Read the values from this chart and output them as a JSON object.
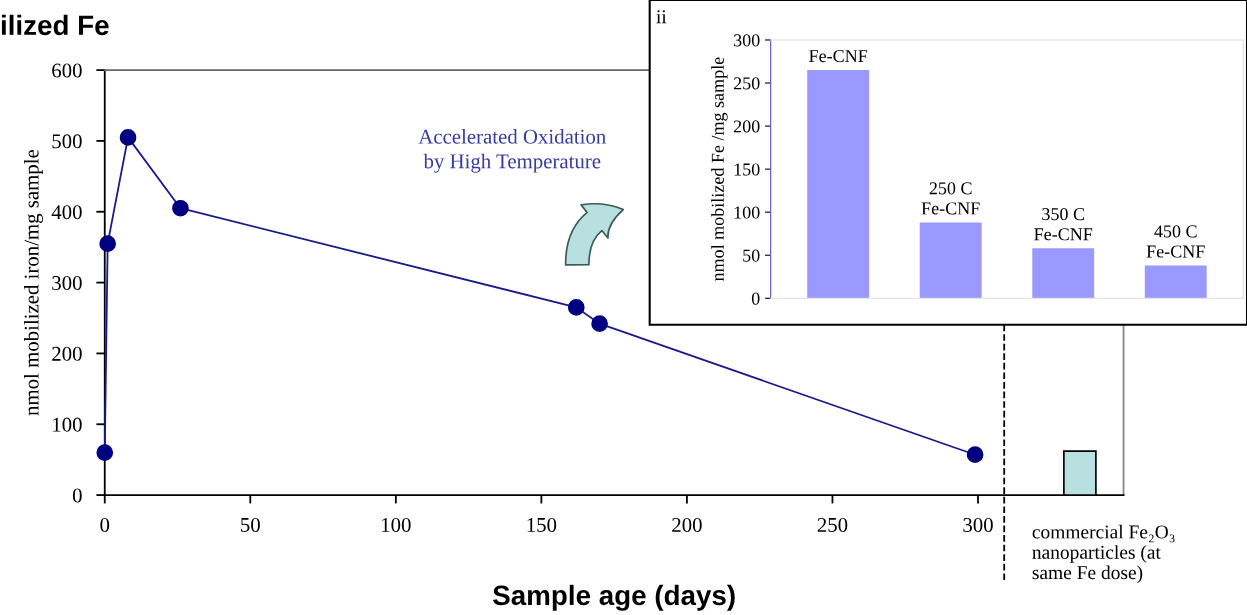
{
  "chart_data": [
    {
      "type": "line",
      "title": "ilized Fe",
      "xlabel": "Sample age (days)",
      "ylabel": "nmol mobilized iron/mg sample",
      "xlim": [
        0,
        350
      ],
      "xticks": [
        0,
        50,
        100,
        150,
        200,
        250,
        300
      ],
      "ylim": [
        0,
        600
      ],
      "yticks": [
        0,
        100,
        200,
        300,
        400,
        500,
        600
      ],
      "marker": "circle",
      "grid": false,
      "series": [
        {
          "type": "line",
          "color": "#1a1a8c",
          "x": [
            0,
            1,
            8,
            26,
            162,
            170,
            299
          ],
          "values": [
            60,
            355,
            505,
            405,
            265,
            242,
            57
          ]
        },
        {
          "type": "bar",
          "color": "#b8e0e0",
          "x": [
            335
          ],
          "values": [
            62
          ]
        }
      ],
      "ref_lines": [
        {
          "axis": "x",
          "value": 309,
          "line_style": "dashed",
          "color": "#000000"
        }
      ],
      "annotations": [
        "Accelerated Oxidation\nby High Temperature",
        "commercial Fe₂O₃\nnanoparticles (at\nsame Fe dose)"
      ]
    },
    {
      "type": "bar",
      "ylabel": "nmol mobilized Fe /mg sample",
      "categories": [
        "Fe-CNF",
        "250 C\nFe-CNF",
        "350 C\nFe-CNF",
        "450 C\nFe-CNF"
      ],
      "values": [
        265,
        88,
        58,
        38
      ],
      "color": "#9999ff",
      "ylim": [
        0,
        300
      ],
      "yticks": [
        0,
        50,
        100,
        150,
        200,
        250,
        300
      ],
      "tick_labels": "y",
      "grid": false,
      "annotations": [
        "ii"
      ]
    }
  ]
}
